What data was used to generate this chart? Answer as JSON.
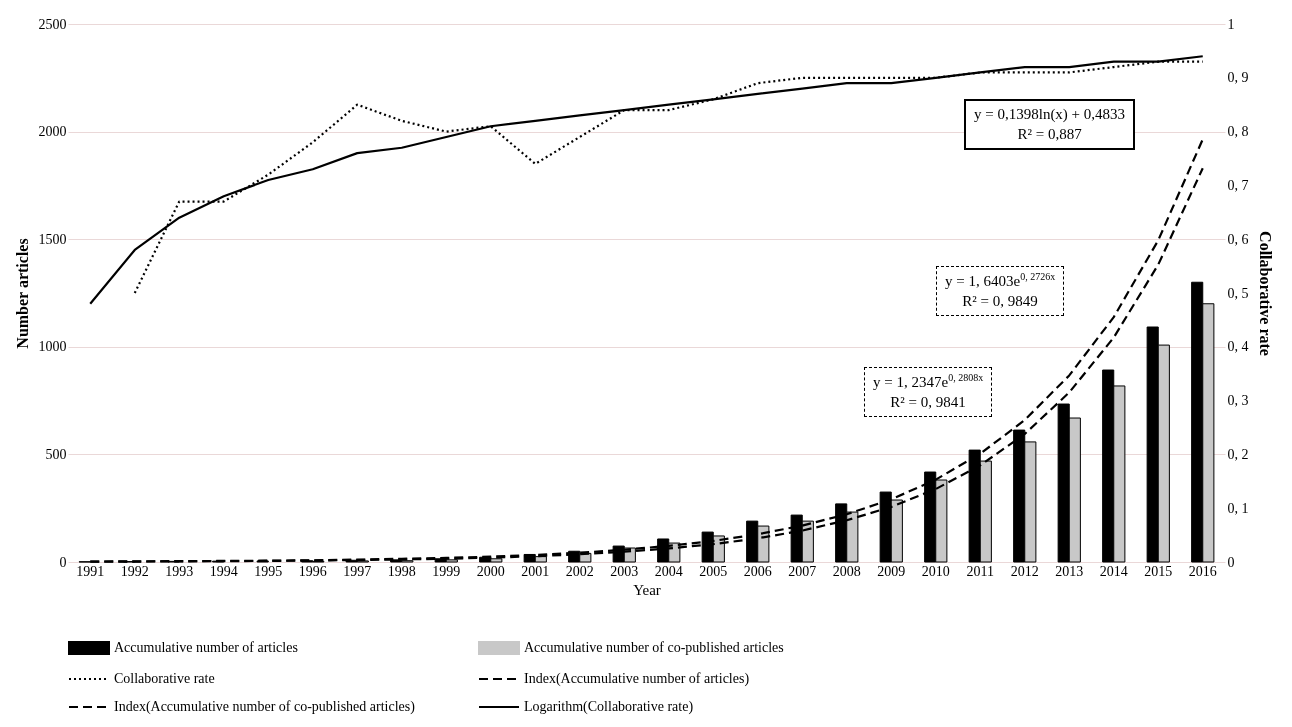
{
  "chart_data": {
    "type": "bar",
    "xlabel": "Year",
    "ylabel": "Number articles",
    "y2label": "Collaborative rate",
    "categories": [
      "1991",
      "1992",
      "1993",
      "1994",
      "1995",
      "1996",
      "1997",
      "1998",
      "1999",
      "2000",
      "2001",
      "2002",
      "2003",
      "2004",
      "2005",
      "2006",
      "2007",
      "2008",
      "2009",
      "2010",
      "2011",
      "2012",
      "2013",
      "2014",
      "2015",
      "2016"
    ],
    "series": [
      {
        "name": "Accumulative number of articles",
        "color": "#000000",
        "values": [
          1,
          2,
          3,
          4,
          5,
          6,
          8,
          10,
          15,
          22,
          35,
          50,
          74,
          107,
          139,
          190,
          218,
          270,
          325,
          418,
          520,
          613,
          734,
          892,
          1092,
          1300
        ]
      },
      {
        "name": "Accumulative number of co-published articles",
        "color": "#c8c8c8",
        "values": [
          null,
          null,
          null,
          null,
          null,
          3,
          5,
          6,
          10,
          15,
          25,
          40,
          65,
          88,
          121,
          167,
          190,
          232,
          288,
          381,
          469,
          558,
          669,
          818,
          1008,
          1200
        ]
      },
      {
        "name": "Collaborative rate",
        "type": "line",
        "axis": "y2",
        "color": "#000000",
        "line_style": "dotted",
        "values": [
          null,
          0.5,
          0.67,
          0.67,
          0.72,
          0.78,
          0.85,
          0.82,
          0.8,
          0.81,
          0.74,
          0.79,
          0.84,
          0.84,
          0.86,
          0.89,
          0.9,
          0.9,
          0.9,
          0.9,
          0.91,
          0.91,
          0.91,
          0.92,
          0.93,
          0.93
        ]
      },
      {
        "name": "Index(Accumulative number of articles)",
        "type": "line",
        "color": "#000000",
        "line_style": "dashed",
        "values": [
          2,
          3,
          4,
          5,
          6,
          8,
          11,
          15,
          19,
          25,
          33,
          43,
          57,
          75,
          98,
          129,
          169,
          222,
          291,
          383,
          503,
          660,
          867,
          1138,
          1495,
          1964
        ]
      },
      {
        "name": "Index(Accumulative number of co-published articles)",
        "type": "line",
        "color": "#000000",
        "line_style": "dashed",
        "values": [
          2,
          2,
          3,
          4,
          5,
          7,
          9,
          12,
          15,
          20,
          27,
          36,
          48,
          63,
          83,
          110,
          146,
          194,
          256,
          339,
          449,
          595,
          788,
          1043,
          1382,
          1830
        ]
      },
      {
        "name": "Logarithm(Collaborative rate)",
        "type": "line",
        "axis": "y2",
        "color": "#000000",
        "line_style": "solid",
        "values": [
          0.48,
          0.58,
          0.64,
          0.68,
          0.71,
          0.73,
          0.76,
          0.77,
          0.79,
          0.81,
          0.82,
          0.83,
          0.84,
          0.85,
          0.86,
          0.87,
          0.88,
          0.89,
          0.89,
          0.9,
          0.91,
          0.92,
          0.92,
          0.93,
          0.93,
          0.94
        ]
      }
    ],
    "ylim": [
      0,
      2500
    ],
    "yticks": [
      0,
      500,
      1000,
      1500,
      2000,
      2500
    ],
    "y2lim": [
      0,
      1
    ],
    "y2ticks": [
      0,
      {
        "value": 0.1,
        "label": "0, 1"
      },
      {
        "value": 0.2,
        "label": "0, 2"
      },
      {
        "value": 0.3,
        "label": "0, 3"
      },
      {
        "value": 0.4,
        "label": "0, 4"
      },
      {
        "value": 0.5,
        "label": "0, 5"
      },
      {
        "value": 0.6,
        "label": "0, 6"
      },
      {
        "value": 0.7,
        "label": "0, 7"
      },
      {
        "value": 0.8,
        "label": "0, 8"
      },
      {
        "value": 0.9,
        "label": "0, 9"
      },
      1
    ],
    "grid": "y",
    "legend": "bottom",
    "annotations": [
      "y = 0,1398ln(x) + 0,4833\nR² = 0,887",
      "y = 1, 6403e$^{0, 2726x}$\nR² = 0, 9849",
      "y = 1, 2347e$^{0, 2808x}$\nR² = 0, 9841"
    ]
  }
}
